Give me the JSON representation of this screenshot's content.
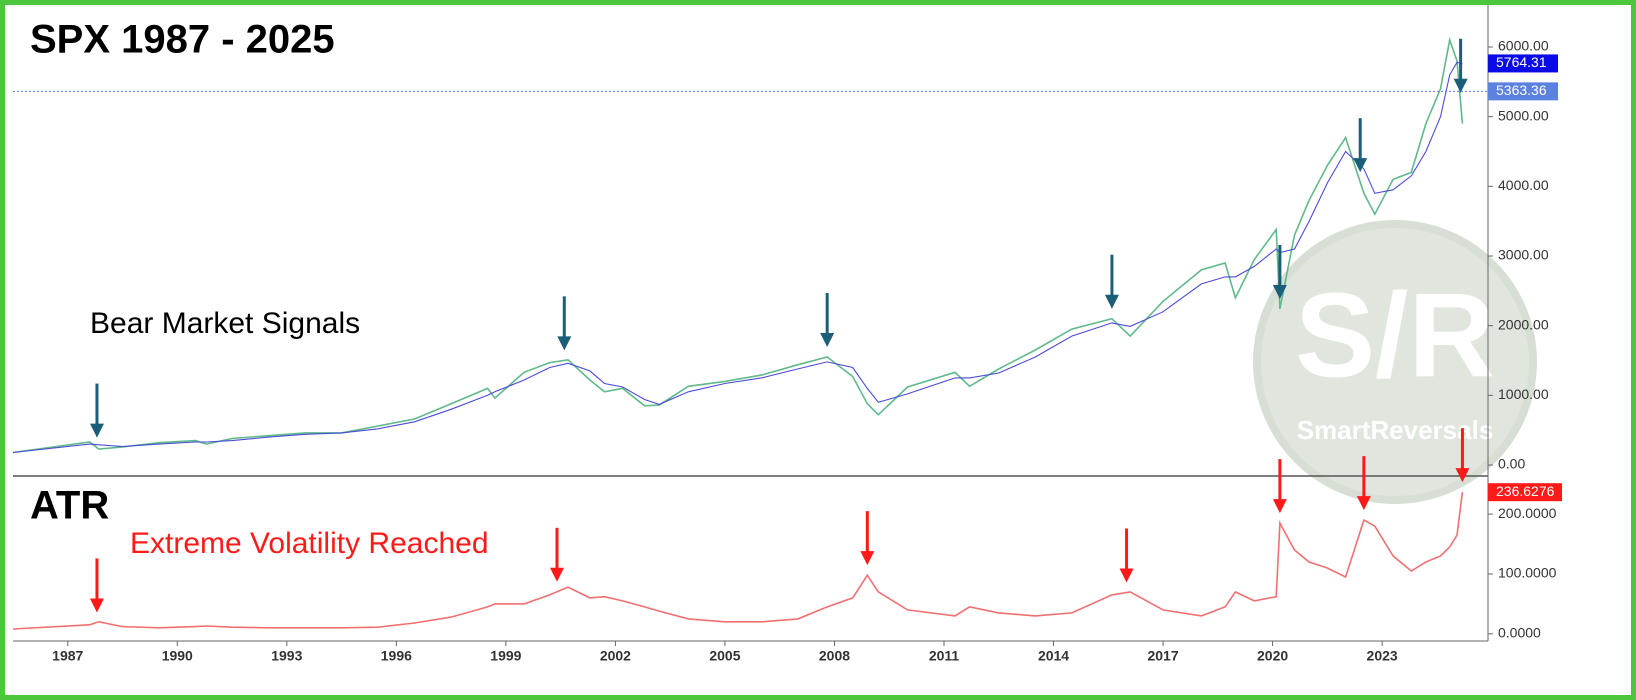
{
  "chart_data": [
    {
      "type": "line",
      "title": "SPX 1987 - 2025",
      "annotation": "Bear Market Signals",
      "x": [
        1985.5,
        1987.6,
        1987.85,
        1988.5,
        1989.5,
        1990.5,
        1990.8,
        1991.5,
        1992.5,
        1993.5,
        1994.5,
        1995.5,
        1996.5,
        1997.5,
        1998.5,
        1998.7,
        1999.5,
        2000.2,
        2000.7,
        2001.3,
        2001.7,
        2002.2,
        2002.8,
        2003.2,
        2004,
        2005,
        2006,
        2007,
        2007.8,
        2008.5,
        2008.9,
        2009.2,
        2010,
        2011.3,
        2011.7,
        2012.5,
        2013.5,
        2014.5,
        2015.6,
        2016.1,
        2017,
        2018.05,
        2018.7,
        2018.98,
        2019.5,
        2020.1,
        2020.2,
        2020.6,
        2021,
        2021.5,
        2022,
        2022.5,
        2022.8,
        2023.3,
        2023.8,
        2024.2,
        2024.6,
        2024.85,
        2025.05,
        2025.2
      ],
      "xlim": [
        1985.5,
        2025.9
      ],
      "ylim": [
        -158,
        6603
      ],
      "yticks": [
        {
          "value": 0,
          "label": "0.00"
        },
        {
          "value": 1000,
          "label": "1000.00"
        },
        {
          "value": 2000,
          "label": "2000.00"
        },
        {
          "value": 3000,
          "label": "3000.00"
        },
        {
          "value": 4000,
          "label": "4000.00"
        },
        {
          "value": 5000,
          "label": "5000.00"
        },
        {
          "value": 6000,
          "label": "6000.00"
        }
      ],
      "series": [
        {
          "color": "#5fb98a",
          "values": [
            180,
            330,
            230,
            260,
            320,
            350,
            300,
            380,
            420,
            460,
            460,
            560,
            660,
            880,
            1100,
            960,
            1330,
            1470,
            1510,
            1220,
            1050,
            1100,
            850,
            860,
            1130,
            1200,
            1290,
            1440,
            1550,
            1270,
            880,
            720,
            1120,
            1330,
            1130,
            1380,
            1650,
            1950,
            2100,
            1850,
            2350,
            2800,
            2900,
            2400,
            2950,
            3380,
            2240,
            3300,
            3800,
            4300,
            4700,
            3900,
            3600,
            4100,
            4200,
            4900,
            5400,
            6100,
            5800,
            4900
          ]
        },
        {
          "color": "#4b4bd8",
          "values": [
            180,
            300,
            290,
            265,
            300,
            330,
            330,
            350,
            400,
            440,
            460,
            520,
            620,
            800,
            1000,
            1050,
            1220,
            1400,
            1460,
            1350,
            1170,
            1120,
            940,
            870,
            1050,
            1170,
            1250,
            1380,
            1480,
            1400,
            1100,
            900,
            1020,
            1250,
            1250,
            1320,
            1550,
            1850,
            2040,
            1990,
            2200,
            2600,
            2700,
            2700,
            2850,
            3100,
            3050,
            3100,
            3500,
            4050,
            4500,
            4250,
            3900,
            3950,
            4150,
            4500,
            5000,
            5600,
            5780,
            5760
          ]
        }
      ],
      "price_labels": [
        {
          "value": 5764.31,
          "color": "#0a0ae6"
        },
        {
          "value": 5363.36,
          "color": "#5b82e0",
          "dotted": true
        }
      ],
      "signals": [
        1987.8,
        2000.6,
        2007.8,
        2015.6,
        2020.2,
        2022.4,
        2025.15
      ],
      "signal_color": "#1b5e7a",
      "watermark": {
        "logo": "S/R",
        "text": "SmartReversals"
      }
    },
    {
      "type": "line",
      "title": "ATR",
      "annotation": "Extreme Volatility Reached",
      "annotation_color": "#ff1a1a",
      "x": [
        1985.5,
        1987.6,
        1987.85,
        1988.5,
        1989.5,
        1990.5,
        1990.8,
        1991.5,
        1992.5,
        1993.5,
        1994.5,
        1995.5,
        1996.5,
        1997.5,
        1998.5,
        1998.7,
        1999.5,
        2000.2,
        2000.7,
        2001.3,
        2001.7,
        2002.2,
        2002.8,
        2003.2,
        2004,
        2005,
        2006,
        2007,
        2007.8,
        2008.5,
        2008.9,
        2009.2,
        2010,
        2011.3,
        2011.7,
        2012.5,
        2013.5,
        2014.5,
        2015.6,
        2016.1,
        2017,
        2018.05,
        2018.7,
        2018.98,
        2019.5,
        2020.1,
        2020.2,
        2020.6,
        2021,
        2021.5,
        2022,
        2022.5,
        2022.8,
        2023.3,
        2023.8,
        2024.2,
        2024.6,
        2024.85,
        2025.05,
        2025.2
      ],
      "xlim": [
        1985.5,
        2025.9
      ],
      "ylim": [
        -12,
        262
      ],
      "yticks": [
        {
          "value": 0,
          "label": "0.0000"
        },
        {
          "value": 100,
          "label": "100.0000"
        },
        {
          "value": 200,
          "label": "200.0000"
        }
      ],
      "xticks": [
        1987,
        1990,
        1993,
        1996,
        1999,
        2002,
        2005,
        2008,
        2011,
        2014,
        2017,
        2020,
        2023
      ],
      "series": [
        {
          "color": "#f07070",
          "values": [
            8,
            15,
            20,
            12,
            10,
            12,
            13,
            11,
            10,
            10,
            10,
            11,
            18,
            28,
            45,
            50,
            50,
            65,
            78,
            60,
            62,
            55,
            45,
            38,
            25,
            20,
            20,
            25,
            45,
            60,
            98,
            70,
            40,
            30,
            45,
            35,
            30,
            35,
            65,
            70,
            40,
            30,
            45,
            70,
            55,
            62,
            185,
            140,
            120,
            110,
            95,
            190,
            180,
            130,
            105,
            120,
            130,
            145,
            165,
            236.6276
          ]
        }
      ],
      "last_value_color": "#ff1a1a",
      "signals": [
        1987.8,
        2000.4,
        2008.9,
        2016.0,
        2020.2,
        2022.5,
        2025.2
      ],
      "signal_color": "#ff1a1a"
    }
  ]
}
